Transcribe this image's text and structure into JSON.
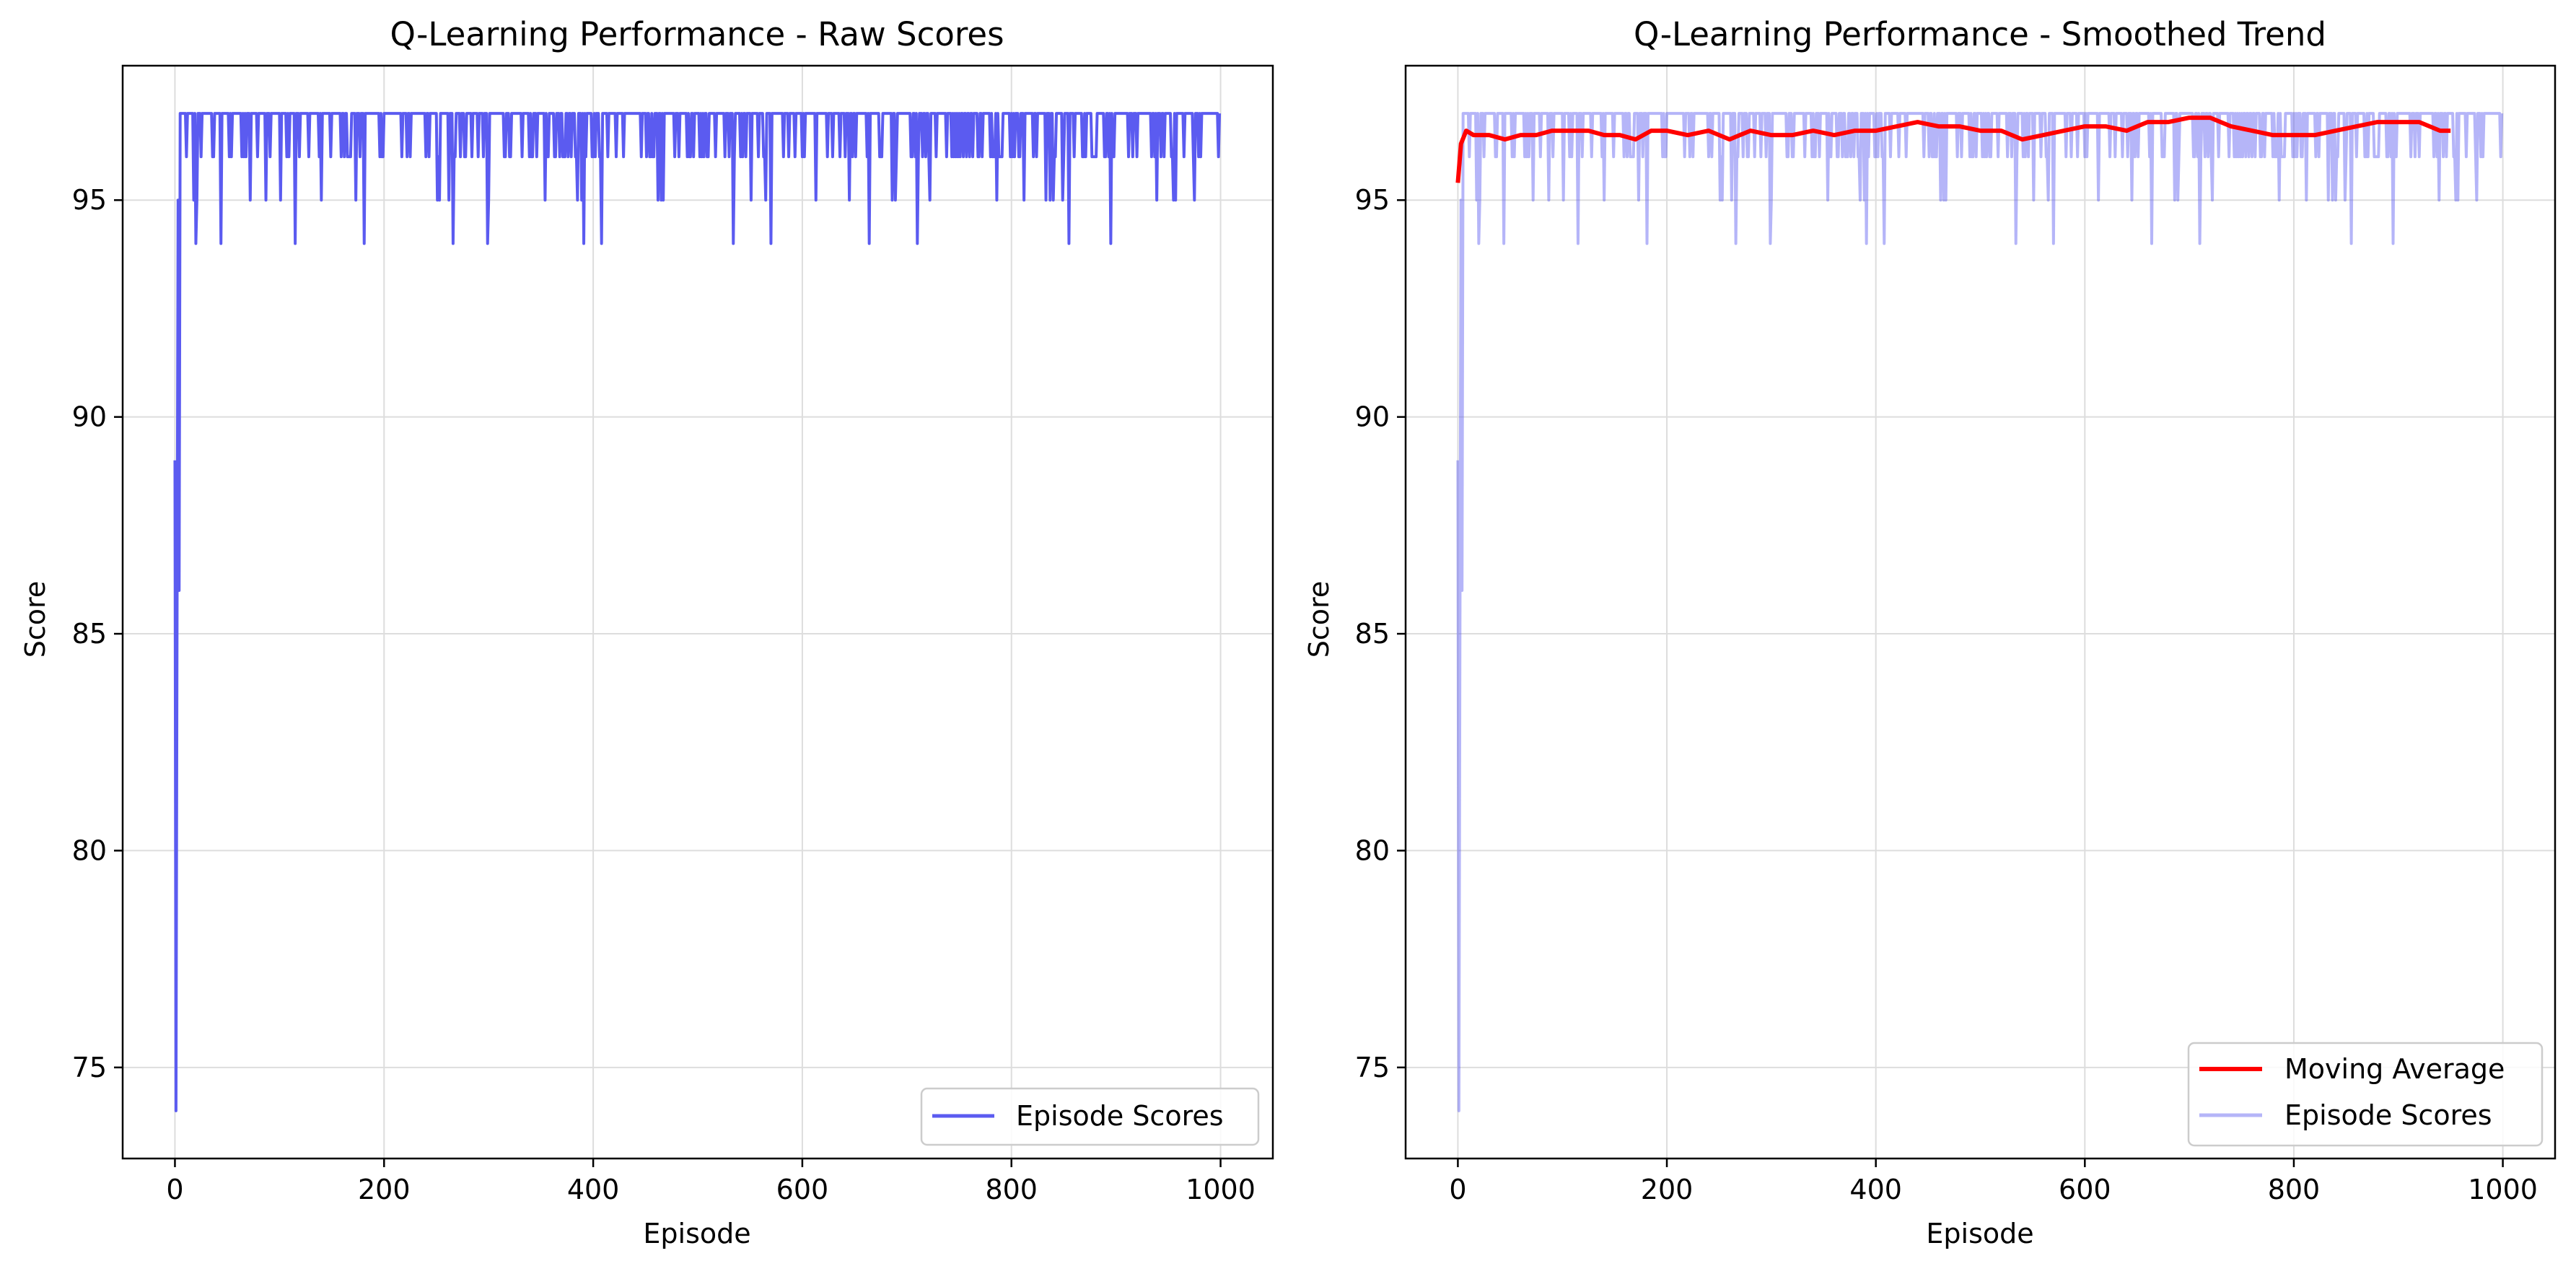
{
  "chart_data": [
    {
      "type": "line",
      "title": "Q-Learning Performance - Raw Scores",
      "xlabel": "Episode",
      "ylabel": "Score",
      "xlim": [
        -50,
        1050
      ],
      "ylim": [
        72.9,
        98.1
      ],
      "xticks": [
        0,
        200,
        400,
        600,
        800,
        1000
      ],
      "yticks": [
        75,
        80,
        85,
        90,
        95
      ],
      "xtick_labels": [
        "0",
        "200",
        "400",
        "600",
        "800",
        "1000"
      ],
      "ytick_labels": [
        "75",
        "80",
        "85",
        "90",
        "95"
      ],
      "grid": true,
      "legend_position": "lower-right",
      "series": [
        {
          "name": "Episode Scores",
          "color": "#5b5bf0",
          "opacity": 1.0,
          "generator": "episode_scores"
        }
      ]
    },
    {
      "type": "line",
      "title": "Q-Learning Performance - Smoothed Trend",
      "xlabel": "Episode",
      "ylabel": "Score",
      "xlim": [
        -50,
        1050
      ],
      "ylim": [
        72.9,
        98.1
      ],
      "xticks": [
        0,
        200,
        400,
        600,
        800,
        1000
      ],
      "yticks": [
        75,
        80,
        85,
        90,
        95
      ],
      "xtick_labels": [
        "0",
        "200",
        "400",
        "600",
        "800",
        "1000"
      ],
      "ytick_labels": [
        "75",
        "80",
        "85",
        "90",
        "95"
      ],
      "grid": true,
      "legend_position": "lower-right",
      "series": [
        {
          "name": "Moving Average",
          "color": "#ff0000",
          "x": [
            0,
            3,
            8,
            15,
            30,
            45,
            60,
            75,
            90,
            100,
            110,
            125,
            140,
            155,
            170,
            185,
            200,
            220,
            240,
            260,
            280,
            300,
            320,
            340,
            360,
            380,
            400,
            420,
            440,
            460,
            480,
            500,
            520,
            540,
            560,
            580,
            600,
            620,
            640,
            660,
            680,
            700,
            720,
            740,
            760,
            780,
            800,
            820,
            840,
            860,
            880,
            900,
            920,
            940,
            950
          ],
          "values": [
            95.4,
            96.3,
            96.6,
            96.5,
            96.5,
            96.4,
            96.5,
            96.5,
            96.6,
            96.6,
            96.6,
            96.6,
            96.5,
            96.5,
            96.4,
            96.6,
            96.6,
            96.5,
            96.6,
            96.4,
            96.6,
            96.5,
            96.5,
            96.6,
            96.5,
            96.6,
            96.6,
            96.7,
            96.8,
            96.7,
            96.7,
            96.6,
            96.6,
            96.4,
            96.5,
            96.6,
            96.7,
            96.7,
            96.6,
            96.8,
            96.8,
            96.9,
            96.9,
            96.7,
            96.6,
            96.5,
            96.5,
            96.5,
            96.6,
            96.7,
            96.8,
            96.8,
            96.8,
            96.6,
            96.6
          ]
        },
        {
          "name": "Episode Scores",
          "color": "#5b5bf0",
          "opacity": 0.45,
          "generator": "episode_scores"
        }
      ]
    }
  ]
}
